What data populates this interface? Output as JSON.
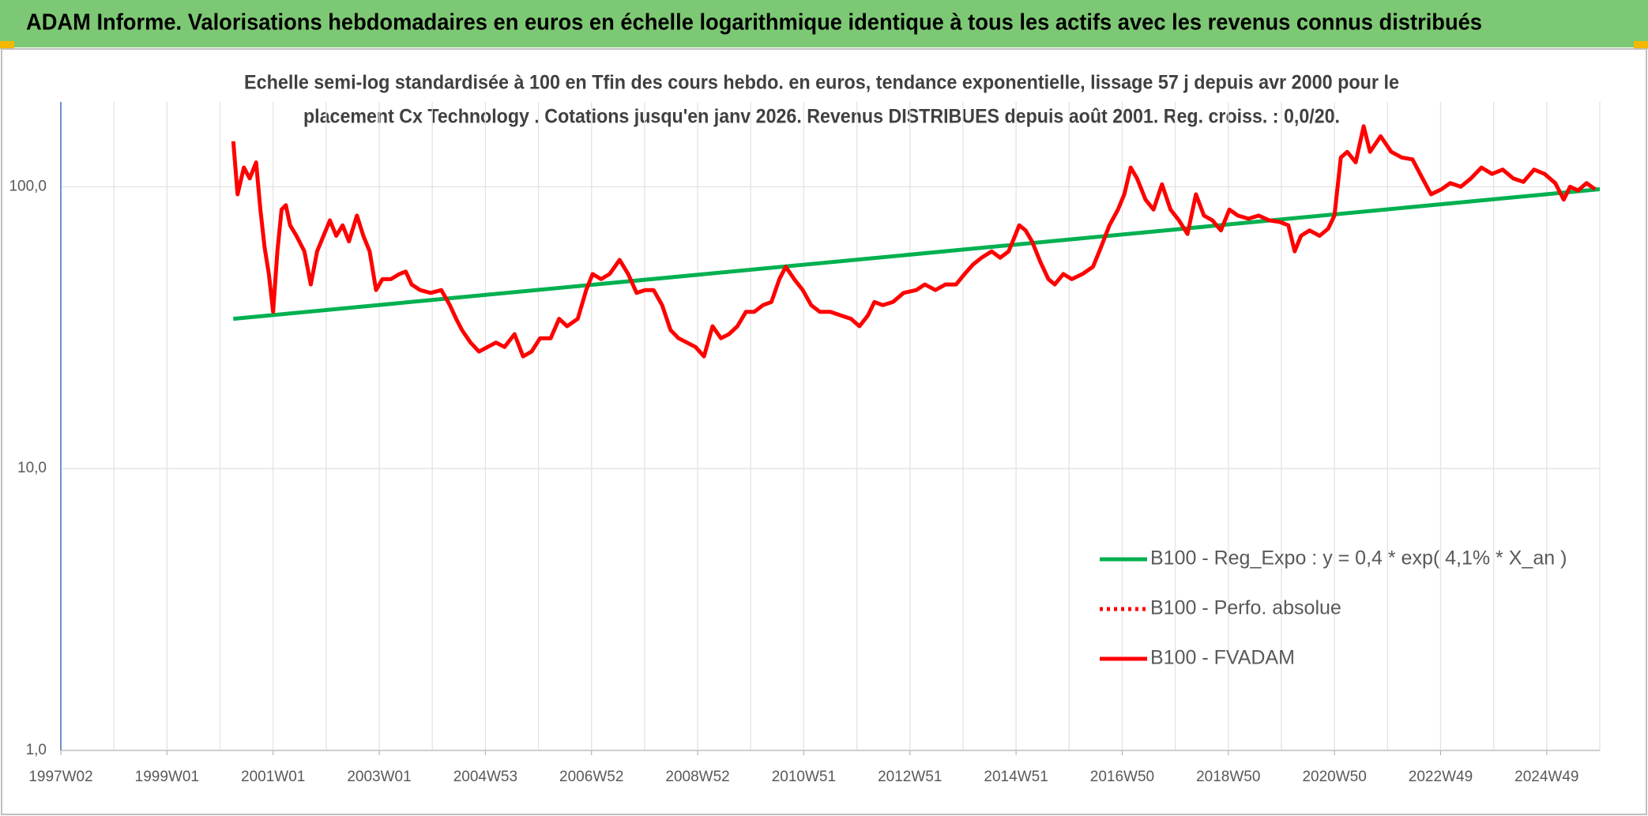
{
  "chart_data": {
    "type": "line",
    "title": "ADAM Informe. Valorisations hebdomadaires en euros en échelle logarithmique identique à tous les actifs avec les revenus connus distribués",
    "subtitle": [
      "Echelle semi-log standardisée à 100 en Tfin des cours hebdo. en euros, tendance exponentielle, lissage 57 j depuis avr 2000 pour le",
      "placement Cx Technology . Cotations jusqu'en janv 2026. Revenus DISTRIBUES depuis août 2001. Reg. croiss. : 0,0/20."
    ],
    "log_scale": true,
    "grid": true,
    "legend": "right",
    "xlim": [
      1997,
      2026
    ],
    "xticks": [
      {
        "value": 1997,
        "label": "1997W02"
      },
      {
        "value": 1999,
        "label": "1999W01"
      },
      {
        "value": 2001,
        "label": "2001W01"
      },
      {
        "value": 2003,
        "label": "2003W01"
      },
      {
        "value": 2005,
        "label": "2004W53"
      },
      {
        "value": 2007,
        "label": "2006W52"
      },
      {
        "value": 2009,
        "label": "2008W52"
      },
      {
        "value": 2011,
        "label": "2010W51"
      },
      {
        "value": 2013,
        "label": "2012W51"
      },
      {
        "value": 2015,
        "label": "2014W51"
      },
      {
        "value": 2017,
        "label": "2016W50"
      },
      {
        "value": 2019,
        "label": "2018W50"
      },
      {
        "value": 2021,
        "label": "2020W50"
      },
      {
        "value": 2023,
        "label": "2022W49"
      },
      {
        "value": 2025,
        "label": "2024W49"
      }
    ],
    "xminorticks": [
      1998,
      2000,
      2002,
      2004,
      2006,
      2008,
      2010,
      2012,
      2014,
      2016,
      2018,
      2020,
      2022,
      2024,
      2026
    ],
    "ylim": [
      1,
      200
    ],
    "yticks": [
      {
        "value": 1,
        "label": "1,0"
      },
      {
        "value": 10,
        "label": "10,0"
      },
      {
        "value": 100,
        "label": "100,0"
      }
    ],
    "series": [
      {
        "name": "B100 - Reg_Expo : y = 0,4 * exp( 4,1% *  X_an )",
        "color": "#00b050",
        "x": [
          2000.25,
          2026.0
        ],
        "values": [
          34,
          98
        ]
      },
      {
        "name": "B100 - Perfo. absolue",
        "color": "#ff0000",
        "dash": "dotted",
        "x": [],
        "values": []
      },
      {
        "name": "B100 - FVADAM",
        "color": "#ff0000",
        "x": [
          2000.25,
          2000.33,
          2000.45,
          2000.56,
          2000.68,
          2000.76,
          2000.84,
          2000.92,
          2001.0,
          2001.08,
          2001.16,
          2001.24,
          2001.32,
          2001.44,
          2001.59,
          2001.71,
          2001.83,
          2001.95,
          2002.07,
          2002.19,
          2002.31,
          2002.43,
          2002.58,
          2002.7,
          2002.82,
          2002.94,
          2003.06,
          2003.22,
          2003.38,
          2003.5,
          2003.61,
          2003.77,
          2003.97,
          2004.17,
          2004.33,
          2004.45,
          2004.56,
          2004.72,
          2004.88,
          2005.04,
          2005.2,
          2005.36,
          2005.55,
          2005.71,
          2005.87,
          2006.03,
          2006.23,
          2006.39,
          2006.54,
          2006.74,
          2006.9,
          2007.02,
          2007.18,
          2007.34,
          2007.53,
          2007.69,
          2007.85,
          2008.01,
          2008.17,
          2008.33,
          2008.49,
          2008.64,
          2008.8,
          2008.96,
          2009.12,
          2009.28,
          2009.44,
          2009.59,
          2009.75,
          2009.91,
          2010.07,
          2010.23,
          2010.39,
          2010.54,
          2010.66,
          2010.82,
          2010.98,
          2011.14,
          2011.3,
          2011.5,
          2011.69,
          2011.89,
          2012.05,
          2012.21,
          2012.33,
          2012.49,
          2012.68,
          2012.88,
          2013.12,
          2013.28,
          2013.48,
          2013.67,
          2013.87,
          2014.03,
          2014.19,
          2014.35,
          2014.54,
          2014.7,
          2014.86,
          2014.98,
          2015.06,
          2015.18,
          2015.3,
          2015.46,
          2015.61,
          2015.73,
          2015.89,
          2016.05,
          2016.25,
          2016.45,
          2016.6,
          2016.76,
          2016.92,
          2017.04,
          2017.16,
          2017.28,
          2017.44,
          2017.59,
          2017.75,
          2017.91,
          2018.07,
          2018.23,
          2018.39,
          2018.54,
          2018.7,
          2018.86,
          2019.02,
          2019.18,
          2019.38,
          2019.57,
          2019.77,
          2019.97,
          2020.13,
          2020.25,
          2020.37,
          2020.53,
          2020.72,
          2020.88,
          2021.0,
          2021.12,
          2021.24,
          2021.4,
          2021.55,
          2021.67,
          2021.87,
          2022.07,
          2022.27,
          2022.47,
          2022.66,
          2022.82,
          2023.02,
          2023.18,
          2023.38,
          2023.57,
          2023.77,
          2023.97,
          2024.17,
          2024.37,
          2024.56,
          2024.76,
          2024.96,
          2025.16,
          2025.32,
          2025.44,
          2025.59,
          2025.75,
          2025.91
        ],
        "values": [
          145,
          94,
          117,
          107,
          122,
          83,
          61,
          49,
          36,
          59,
          83,
          86,
          73,
          67,
          59,
          45,
          59,
          67,
          76,
          67,
          73,
          64,
          79,
          67,
          59,
          43,
          47,
          47,
          49,
          50,
          45,
          43,
          42,
          43,
          38,
          34,
          31,
          28,
          26,
          27,
          28,
          27,
          30,
          25,
          26,
          29,
          29,
          34,
          32,
          34,
          43,
          49,
          47,
          49,
          55,
          49,
          42,
          43,
          43,
          38,
          31,
          29,
          28,
          27,
          25,
          32,
          29,
          30,
          32,
          36,
          36,
          38,
          39,
          47,
          52,
          47,
          43,
          38,
          36,
          36,
          35,
          34,
          32,
          35,
          39,
          38,
          39,
          42,
          43,
          45,
          43,
          45,
          45,
          49,
          53,
          56,
          59,
          56,
          59,
          67,
          73,
          70,
          64,
          54,
          47,
          45,
          49,
          47,
          49,
          52,
          61,
          73,
          83,
          94,
          117,
          107,
          90,
          83,
          102,
          83,
          76,
          68,
          94,
          79,
          76,
          70,
          83,
          79,
          77,
          79,
          76,
          75,
          73,
          59,
          67,
          70,
          67,
          71,
          79,
          127,
          133,
          122,
          164,
          133,
          151,
          133,
          127,
          125,
          107,
          94,
          98,
          103,
          100,
          107,
          117,
          111,
          115,
          107,
          104,
          115,
          111,
          103,
          90,
          100,
          97,
          103,
          98
        ]
      }
    ]
  }
}
